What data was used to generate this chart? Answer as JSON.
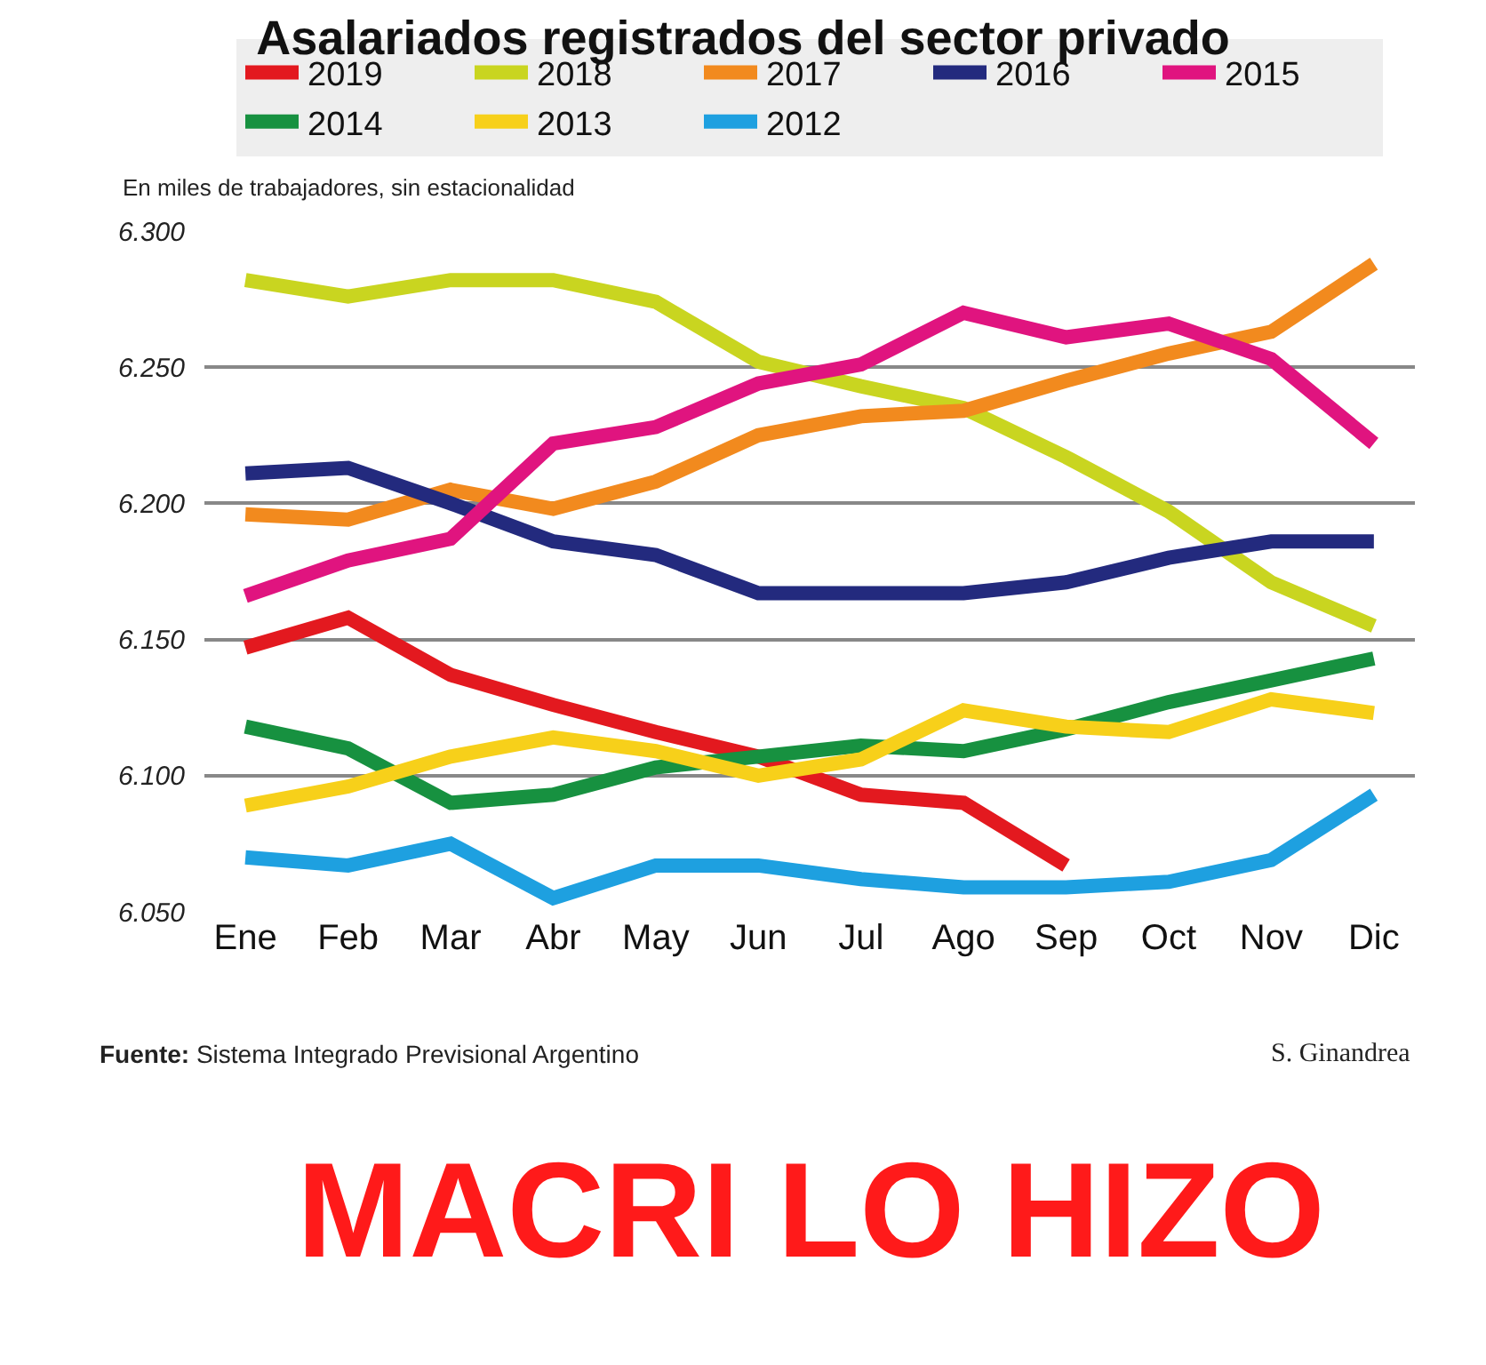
{
  "chart_data": {
    "type": "line",
    "title": "Asalariados registrados del sector privado",
    "subtitle": "En miles de trabajadores, sin estacionalidad",
    "categories": [
      "Ene",
      "Feb",
      "Mar",
      "Abr",
      "May",
      "Jun",
      "Jul",
      "Ago",
      "Sep",
      "Oct",
      "Nov",
      "Dic"
    ],
    "series": [
      {
        "name": "2019",
        "color": "#e3191f",
        "values": [
          6147,
          6158,
          6137,
          6126,
          6116,
          6107,
          6093,
          6090,
          6067,
          null,
          null,
          null
        ]
      },
      {
        "name": "2018",
        "color": "#c9d520",
        "values": [
          6282,
          6276,
          6282,
          6282,
          6274,
          6252,
          6243,
          6235,
          6217,
          6197,
          6171,
          6155
        ]
      },
      {
        "name": "2017",
        "color": "#f28a1e",
        "values": [
          6196,
          6194,
          6205,
          6198,
          6208,
          6225,
          6232,
          6234,
          6245,
          6255,
          6263,
          6288
        ]
      },
      {
        "name": "2016",
        "color": "#232a7e",
        "values": [
          6211,
          6213,
          6200,
          6186,
          6181,
          6167,
          6167,
          6167,
          6171,
          6180,
          6186,
          6186
        ]
      },
      {
        "name": "2015",
        "color": "#e0147f",
        "values": [
          6166,
          6179,
          6187,
          6222,
          6228,
          6244,
          6251,
          6270,
          6261,
          6266,
          6253,
          6222
        ]
      },
      {
        "name": "2014",
        "color": "#179140",
        "values": [
          6118,
          6110,
          6090,
          6093,
          6103,
          6107,
          6111,
          6109,
          6117,
          6127,
          6135,
          6143
        ]
      },
      {
        "name": "2013",
        "color": "#f7d01a",
        "values": [
          6089,
          6096,
          6107,
          6114,
          6109,
          6100,
          6106,
          6124,
          6118,
          6116,
          6128,
          6123
        ]
      },
      {
        "name": "2012",
        "color": "#1ea0e0",
        "values": [
          6070,
          6067,
          6075,
          6055,
          6067,
          6067,
          6062,
          6059,
          6059,
          6061,
          6069,
          6093
        ]
      }
    ],
    "ylim": [
      6050,
      6300
    ],
    "yticks": [
      {
        "value": 6050,
        "label": "6.050"
      },
      {
        "value": 6100,
        "label": "6.100"
      },
      {
        "value": 6150,
        "label": "6.150"
      },
      {
        "value": 6200,
        "label": "6.200"
      },
      {
        "value": 6250,
        "label": "6.250"
      },
      {
        "value": 6300,
        "label": "6.300"
      }
    ],
    "grid": "y",
    "legend": "top",
    "marker": "none",
    "line_style": "solid",
    "annotations": [
      "Fuente: Sistema Integrado Previsional Argentino",
      "S. Ginandrea",
      "MACRI LO HIZO"
    ]
  }
}
